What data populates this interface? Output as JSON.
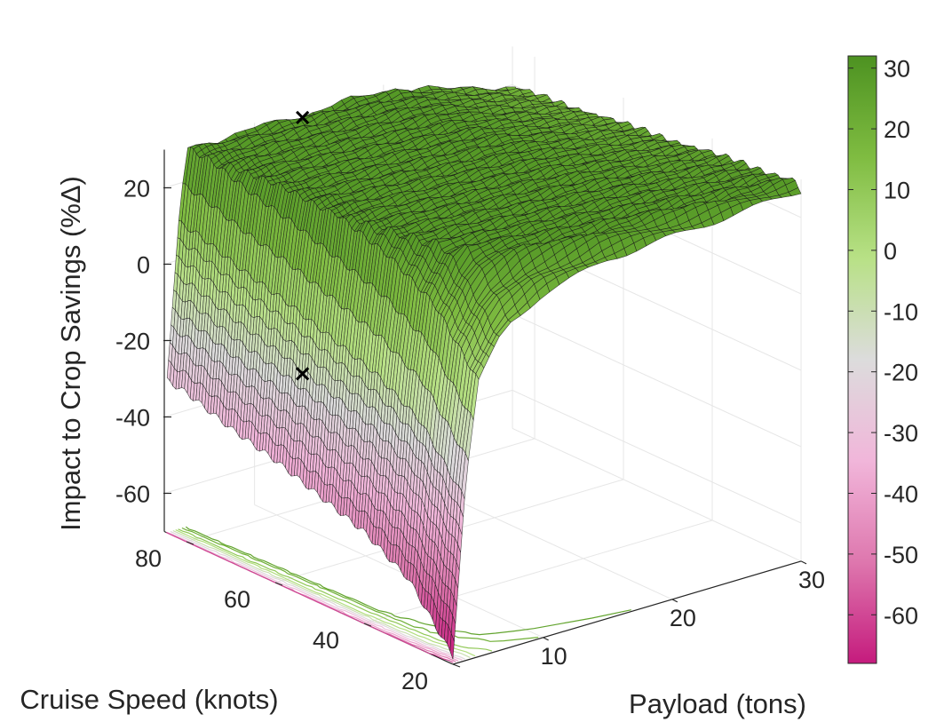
{
  "chart_data": {
    "type": "surface",
    "title": "",
    "xlabel": "Payload (tons)",
    "ylabel": "Cruise Speed (knots)",
    "zlabel": "Impact to Crop Savings (%Δ)",
    "xlim": [
      3,
      30
    ],
    "ylim": [
      20,
      85
    ],
    "zlim": [
      -70,
      30
    ],
    "x_ticks": [
      10,
      20,
      30
    ],
    "y_ticks": [
      20,
      40,
      60,
      80
    ],
    "z_ticks": [
      -60,
      -40,
      -20,
      0,
      20
    ],
    "grid": true,
    "colorbar": {
      "ticks": [
        30,
        20,
        10,
        0,
        -10,
        -20,
        -30,
        -40,
        -50,
        -60
      ],
      "range": [
        -68,
        32
      ],
      "colormap": [
        "#c51b7d",
        "#de77ae",
        "#f1b6da",
        "#dcdcdc",
        "#b8e186",
        "#7fbc41",
        "#4d9221"
      ]
    },
    "surface_profile_min_payload": {
      "cruise_speed": [
        20,
        30,
        40,
        50,
        60,
        70,
        80,
        85
      ],
      "impact": [
        -68,
        -53,
        -46,
        -42,
        -38,
        -35,
        -31,
        -30
      ]
    },
    "surface_profile_payload": {
      "payload": [
        3,
        4,
        5,
        7,
        10,
        15,
        20,
        30
      ],
      "impact_offset": [
        0,
        45,
        70,
        82,
        88,
        92,
        93,
        95
      ]
    },
    "markers": [
      {
        "payload": 12,
        "cruise_speed": 80,
        "impact": 32,
        "symbol": "×"
      },
      {
        "payload": 12,
        "cruise_speed": 80,
        "impact": -35,
        "symbol": "×"
      }
    ],
    "contour_lines": "projected onto floor plane"
  }
}
